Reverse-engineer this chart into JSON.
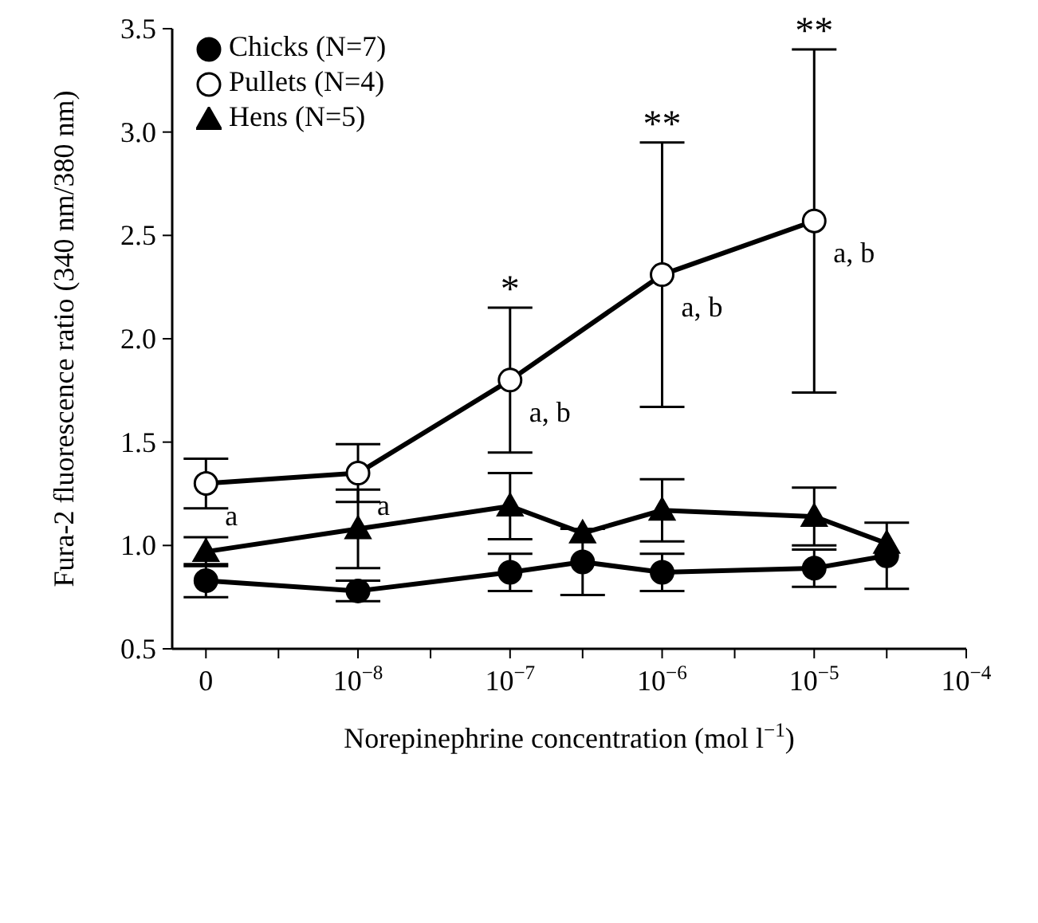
{
  "chart_data": {
    "type": "line",
    "xlabel": "Norepinephrine concentration (mol l$^{−1}$)",
    "ylabel": "Fura-2 fluorescence ratio (340 nm/380 nm)",
    "log": "x",
    "xlim": [
      6e-10,
      0.0001
    ],
    "xticks": [
      {
        "value": 1e-09,
        "label": "0"
      },
      {
        "value": 3e-09,
        "label": null
      },
      {
        "value": 1e-08,
        "label": "10$^{−8}$"
      },
      {
        "value": 3e-08,
        "label": null
      },
      {
        "value": 1e-07,
        "label": "10$^{−7}$"
      },
      {
        "value": 3e-07,
        "label": null
      },
      {
        "value": 1e-06,
        "label": "10$^{−6}$"
      },
      {
        "value": 3e-06,
        "label": null
      },
      {
        "value": 1e-05,
        "label": "10$^{−5}$"
      },
      {
        "value": 3e-05,
        "label": null
      },
      {
        "value": 0.0001,
        "label": "10$^{−4}$"
      }
    ],
    "ylim": [
      0.5,
      3.5
    ],
    "yticks": [
      0.5,
      {
        "value": 1,
        "label": "1.0"
      },
      1.5,
      {
        "value": 2,
        "label": "2.0"
      },
      2.5,
      {
        "value": 3,
        "label": "3.0"
      },
      3.5
    ],
    "legend": "top left",
    "grid": false,
    "line_style": "solid",
    "series": [
      {
        "name": "Chicks (N=7)",
        "color": "#000000",
        "marker": "circle",
        "x": [
          1e-09,
          1e-08,
          1e-07,
          3e-07,
          1e-06,
          1e-05,
          3e-05
        ],
        "values": [
          0.83,
          0.78,
          0.87,
          0.92,
          0.87,
          0.89,
          0.95
        ],
        "errors": [
          0.08,
          0.05,
          0.09,
          0.16,
          0.09,
          0.09,
          0.16
        ]
      },
      {
        "name": "Pullets (N=4)",
        "color": "#000000",
        "colors": [
          "#ffffff",
          "#ffffff",
          "#ffffff",
          "#ffffff",
          "#ffffff"
        ],
        "marker": "circle",
        "x": [
          1e-09,
          1e-08,
          1e-07,
          1e-06,
          1e-05
        ],
        "values": [
          1.3,
          1.35,
          1.8,
          2.31,
          2.57
        ],
        "errors": [
          0.12,
          0.14,
          0.35,
          0.64,
          0.83
        ]
      },
      {
        "name": "Hens (N=5)",
        "color": "#000000",
        "marker": "triangle",
        "x": [
          1e-09,
          1e-08,
          1e-07,
          3e-07,
          1e-06,
          1e-05,
          3e-05
        ],
        "values": [
          0.97,
          1.08,
          1.19,
          1.06,
          1.17,
          1.14,
          1.01
        ],
        "errors": [
          0.07,
          0.19,
          0.16,
          null,
          0.15,
          0.14,
          null
        ]
      }
    ],
    "annotations": [
      {
        "text": "a",
        "x": 1e-09,
        "y": 1.3
      },
      {
        "text": "a",
        "x": 1e-08,
        "y": 1.35
      },
      {
        "text": "a, b",
        "x": 1e-07,
        "y": 1.8
      },
      {
        "text": "a, b",
        "x": 1e-06,
        "y": 2.31
      },
      {
        "text": "a, b",
        "x": 1e-05,
        "y": 2.57
      },
      {
        "text": "*",
        "x": 1e-07,
        "y": 2.15
      },
      {
        "text": "**",
        "x": 1e-06,
        "y": 2.95
      },
      {
        "text": "**",
        "x": 1e-05,
        "y": 3.4
      }
    ]
  }
}
